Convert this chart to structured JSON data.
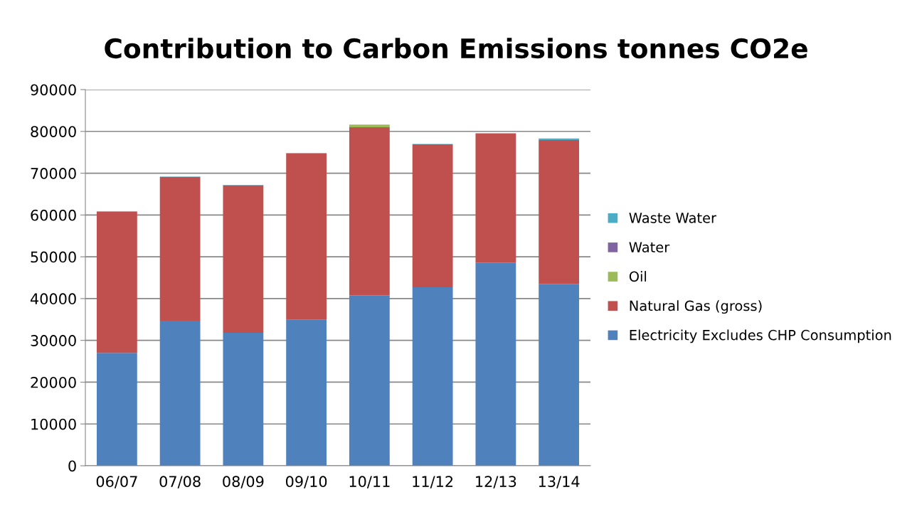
{
  "chart_data": {
    "type": "bar",
    "title": "Contribution to Carbon Emissions tonnes CO2e",
    "categories": [
      "06/07",
      "07/08",
      "08/09",
      "09/10",
      "10/11",
      "11/12",
      "12/13",
      "13/14"
    ],
    "stacked": true,
    "series": [
      {
        "name": "Electricity Excludes CHP Consumption",
        "color": "#4f81bd",
        "values": [
          27000,
          34700,
          31800,
          34900,
          40800,
          42700,
          48600,
          43500
        ]
      },
      {
        "name": "Natural Gas (gross)",
        "color": "#c0504d",
        "values": [
          33800,
          34400,
          35300,
          39800,
          40200,
          34200,
          30900,
          34400
        ]
      },
      {
        "name": "Oil",
        "color": "#9bbb59",
        "values": [
          0,
          0,
          0,
          0,
          600,
          0,
          0,
          0
        ]
      },
      {
        "name": "Water",
        "color": "#8064a2",
        "values": [
          0,
          0,
          0,
          0,
          0,
          0,
          0,
          null
        ]
      },
      {
        "name": "Waste Water",
        "color": "#4bacc6",
        "values": [
          100,
          100,
          100,
          100,
          0,
          100,
          100,
          400
        ]
      }
    ],
    "ylim": [
      0,
      90000
    ],
    "yticks": [
      0,
      10000,
      20000,
      30000,
      40000,
      50000,
      60000,
      70000,
      80000,
      90000
    ],
    "grid": "y",
    "legend": "right"
  }
}
